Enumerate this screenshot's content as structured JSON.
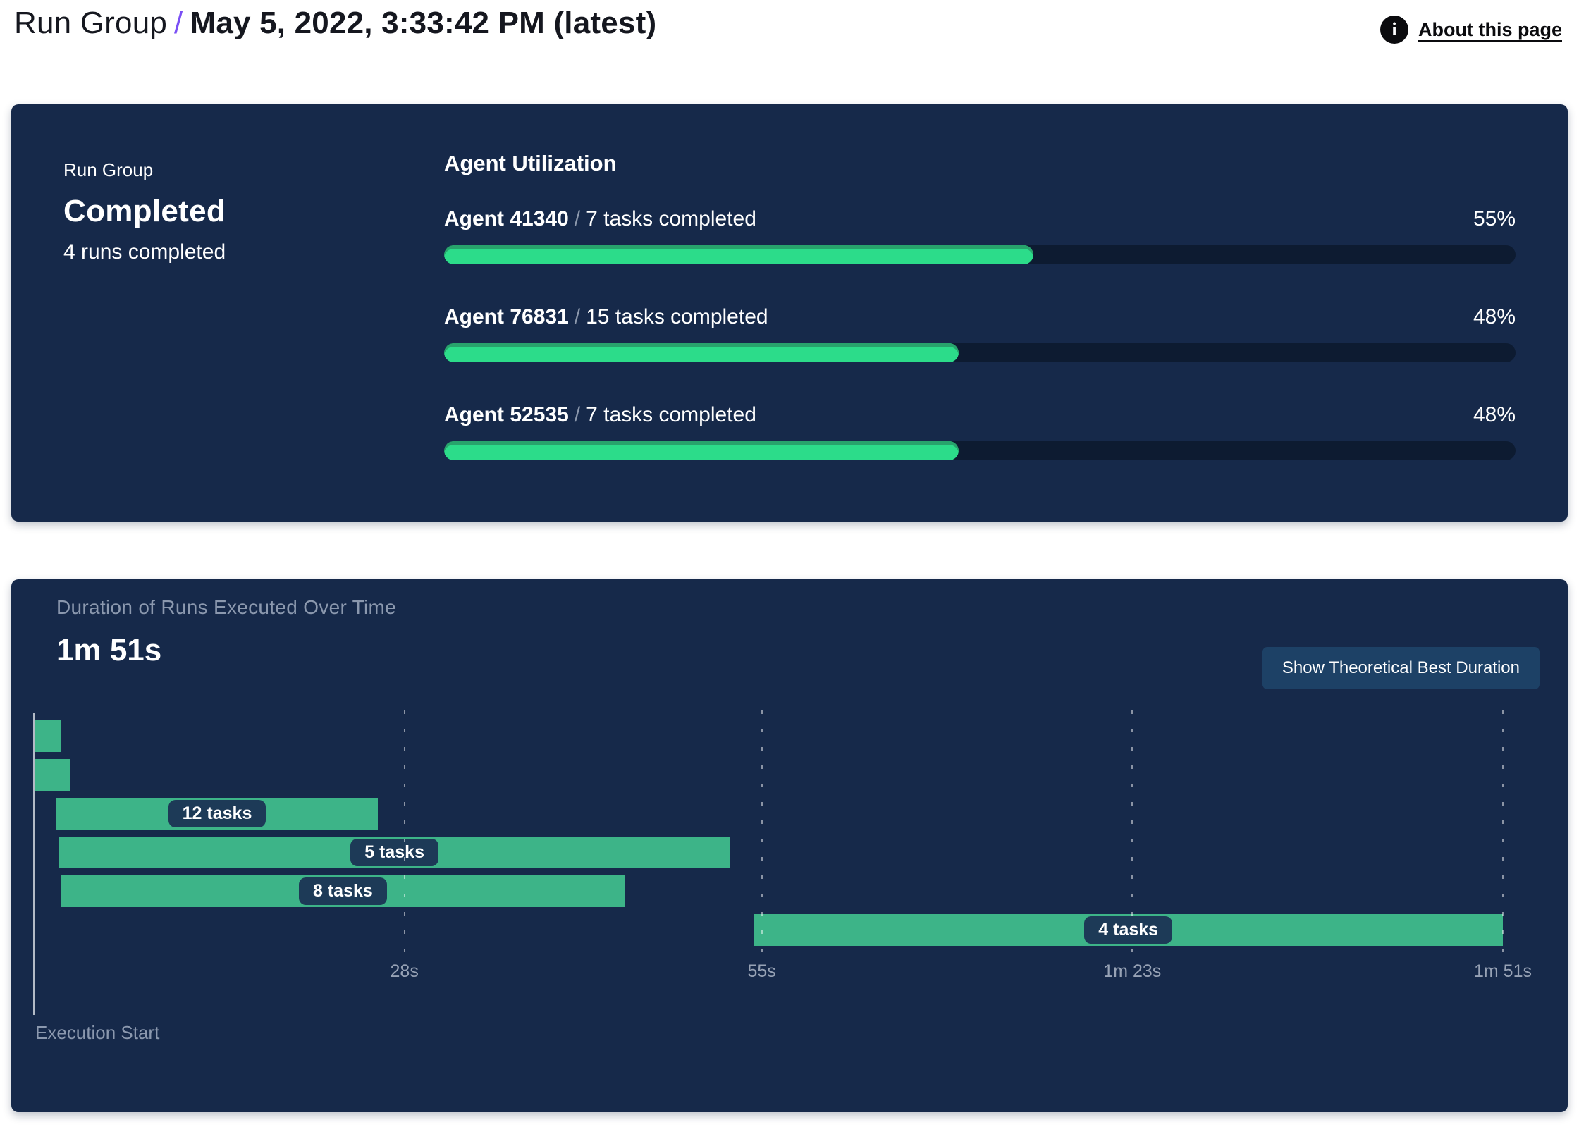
{
  "header": {
    "breadcrumb_root": "Run Group",
    "separator": "/",
    "title": "May 5, 2022, 3:33:42 PM (latest)",
    "info_icon_glyph": "i",
    "about_link": "About this page"
  },
  "summary": {
    "label": "Run Group",
    "status": "Completed",
    "runs_completed": "4 runs completed"
  },
  "agent_utilization": {
    "title": "Agent Utilization",
    "agents": [
      {
        "name": "Agent 41340",
        "separator": "/",
        "tasks": "7 tasks completed",
        "percent_label": "55%",
        "percent": 55
      },
      {
        "name": "Agent 76831",
        "separator": "/",
        "tasks": "15 tasks completed",
        "percent_label": "48%",
        "percent": 48
      },
      {
        "name": "Agent 52535",
        "separator": "/",
        "tasks": "7 tasks completed",
        "percent_label": "48%",
        "percent": 48
      }
    ]
  },
  "duration_panel": {
    "title": "Duration of Runs Executed Over Time",
    "total_duration": "1m 51s",
    "button_label": "Show Theoretical Best Duration",
    "execution_start_label": "Execution Start"
  },
  "chart_data": {
    "type": "bar",
    "subtype": "gantt-timeline",
    "title": "Duration of Runs Executed Over Time",
    "total_duration_label": "1m 51s",
    "x_unit": "seconds",
    "x_domain": [
      0,
      111
    ],
    "x_ticks": [
      {
        "label": "28s",
        "value": 28
      },
      {
        "label": "55s",
        "value": 55
      },
      {
        "label": "1m 23s",
        "value": 83
      },
      {
        "label": "1m 51s",
        "value": 111
      }
    ],
    "grid": "dashed-vertical",
    "bars": [
      {
        "start": 0,
        "end": 2.1,
        "label": ""
      },
      {
        "start": 0,
        "end": 2.7,
        "label": ""
      },
      {
        "start": 1.7,
        "end": 26.0,
        "label": "12 tasks"
      },
      {
        "start": 1.9,
        "end": 52.6,
        "label": "5 tasks"
      },
      {
        "start": 2.0,
        "end": 44.7,
        "label": "8 tasks"
      },
      {
        "start": 54.4,
        "end": 111,
        "label": "4 tasks"
      }
    ]
  },
  "colors": {
    "panel_background": "#16294a",
    "progress_track": "#0d1b31",
    "progress_fill": "#2cdc8a",
    "progress_fill_edge": "#28a36c",
    "gantt_bar": "#3db488",
    "pill_background": "#1d3a57",
    "button_background": "#1d4166",
    "accent_purple": "#7a4ff5",
    "muted_text": "#8b98ae"
  }
}
